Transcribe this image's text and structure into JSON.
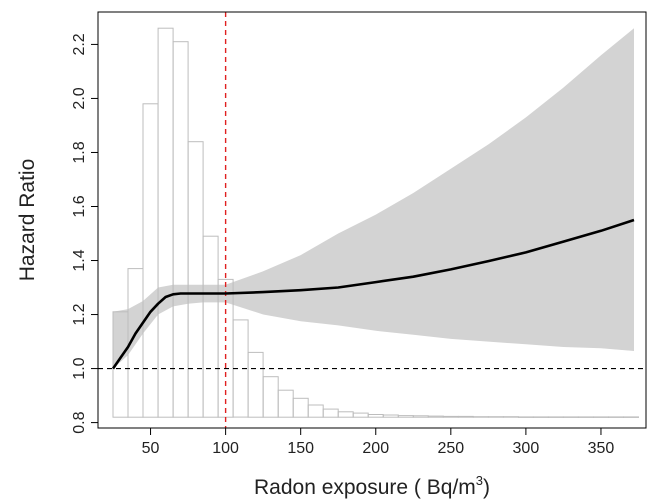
{
  "chart_data": {
    "type": "line",
    "xlabel": "Radon exposure ( Bq/m",
    "xlabel_superscript": "3",
    "xlabel_close": ")",
    "ylabel": "Hazard Ratio",
    "xlim": [
      15,
      380
    ],
    "ylim": [
      0.78,
      2.32
    ],
    "x_ticks": [
      50,
      100,
      150,
      200,
      250,
      300,
      350
    ],
    "y_ticks": [
      0.8,
      1.0,
      1.2,
      1.4,
      1.6,
      1.8,
      2.0,
      2.2
    ],
    "y_tick_labels": [
      "0.8",
      "1.0",
      "1.2",
      "1.4",
      "1.6",
      "1.8",
      "2.0",
      "2.2"
    ],
    "reference_line_y": 1.0,
    "reference_line_x": 100,
    "colors": {
      "curve": "#000000",
      "ci_band": "#d3d3d3",
      "histogram": "#bdbdbd",
      "vline": "#e02020",
      "hline": "#000000"
    },
    "series": [
      {
        "type": "line",
        "x": [
          25,
          30,
          35,
          40,
          45,
          50,
          55,
          60,
          65,
          70,
          80,
          90,
          100,
          125,
          150,
          175,
          200,
          225,
          250,
          275,
          300,
          325,
          350,
          372
        ],
        "y": [
          1.0,
          1.04,
          1.08,
          1.13,
          1.17,
          1.21,
          1.24,
          1.265,
          1.275,
          1.278,
          1.278,
          1.278,
          1.278,
          1.283,
          1.29,
          1.3,
          1.32,
          1.34,
          1.367,
          1.398,
          1.43,
          1.47,
          1.51,
          1.55
        ]
      },
      {
        "type": "band",
        "x": [
          25,
          35,
          45,
          55,
          65,
          75,
          85,
          100,
          125,
          150,
          175,
          200,
          225,
          250,
          275,
          300,
          325,
          350,
          372
        ],
        "lower": [
          1.0,
          1.05,
          1.13,
          1.2,
          1.23,
          1.24,
          1.245,
          1.245,
          1.2,
          1.175,
          1.16,
          1.14,
          1.125,
          1.11,
          1.1,
          1.09,
          1.08,
          1.075,
          1.065
        ],
        "upper": [
          1.21,
          1.22,
          1.25,
          1.3,
          1.31,
          1.31,
          1.31,
          1.31,
          1.36,
          1.42,
          1.5,
          1.57,
          1.65,
          1.74,
          1.83,
          1.93,
          2.04,
          2.16,
          2.26
        ]
      },
      {
        "type": "histogram",
        "bin_start": 25,
        "bin_width": 10,
        "heights": [
          1.21,
          1.37,
          1.98,
          2.26,
          2.21,
          1.84,
          1.49,
          1.33,
          1.18,
          1.06,
          0.97,
          0.92,
          0.89,
          0.865,
          0.85,
          0.84,
          0.835,
          0.83,
          0.828,
          0.826,
          0.825,
          0.824,
          0.823,
          0.823,
          0.822,
          0.822,
          0.822,
          0.821,
          0.821,
          0.821,
          0.821,
          0.821,
          0.821,
          0.821,
          0.821
        ]
      }
    ]
  }
}
